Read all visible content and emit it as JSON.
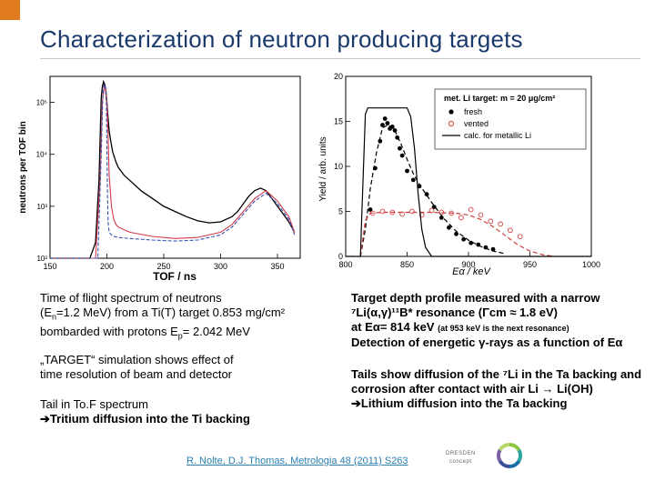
{
  "slide": {
    "title": "Characterization of neutron producing targets",
    "accent_color": "#e07b1f",
    "title_color": "#1b3a6b"
  },
  "left_text": {
    "line1": "Time of flight spectrum of neutrons",
    "line2_pre": "(E",
    "line2_sub": "n",
    "line2_post": "=1.2 MeV) from a Ti(T) target 0.853 mg/cm²",
    "line3_pre": "bombarded with protons E",
    "line3_sub": "p",
    "line3_post": "= 2.042 MeV",
    "sim1": "„TARGET“ simulation shows effect of",
    "sim2": "time resolution of beam and detector",
    "tail1": "Tail in To.F spectrum",
    "tail2": "Tritium diffusion into the Ti backing"
  },
  "right_text": {
    "l1": "Target depth profile measured with a narrow",
    "l2": "⁷Li(α,γ)¹¹B* resonance (Γcm ≈ 1.8 eV)",
    "l3a": "at Eα= 814 keV",
    "l3b": "(at 953 keV is the next resonance)",
    "l4": "Detection of energetic γ-rays as a function of Eα",
    "t1": "Tails show diffusion of the ⁷Li in the Ta backing and",
    "t2": "corrosion after contact with air Li → Li(OH)",
    "t3": "Lithium diffusion into the Ta backing"
  },
  "reference": "R. Nolte, D.J. Thomas, Metrologia 48 (2011) S263",
  "logo": {
    "line1": "DRESDEN",
    "line2": "concept"
  },
  "chart_data": [
    {
      "type": "line",
      "title": "",
      "xlabel": "TOF / ns",
      "ylabel": "neutrons per TOF bin",
      "xlim": [
        150,
        370
      ],
      "ylim_log10": [
        2,
        5.5
      ],
      "xticks": [
        "150",
        "200",
        "250",
        "300",
        "350"
      ],
      "yticks": [
        "10²",
        "10³",
        "10⁴",
        "10⁵"
      ],
      "series": [
        {
          "name": "measured",
          "color": "#000000",
          "x": [
            150,
            185,
            190,
            193,
            195,
            196,
            197,
            198,
            199,
            200,
            201,
            202,
            203,
            205,
            208,
            210,
            215,
            220,
            225,
            230,
            240,
            250,
            260,
            270,
            280,
            290,
            300,
            310,
            315,
            320,
            325,
            330,
            335,
            340,
            345,
            350,
            355,
            360,
            365
          ],
          "y": [
            2.0,
            2.0,
            2.3,
            3.5,
            5.1,
            5.3,
            5.4,
            5.35,
            5.25,
            5.0,
            4.7,
            4.45,
            4.3,
            4.05,
            3.85,
            3.75,
            3.6,
            3.5,
            3.4,
            3.3,
            3.15,
            3.0,
            2.9,
            2.8,
            2.72,
            2.68,
            2.7,
            2.8,
            2.9,
            3.05,
            3.2,
            3.3,
            3.35,
            3.3,
            3.15,
            3.0,
            2.85,
            2.7,
            2.5
          ]
        },
        {
          "name": "simulation (red)",
          "color": "#d03a4a",
          "x": [
            150,
            190,
            194,
            196,
            197,
            198,
            199,
            200,
            201,
            202,
            204,
            206,
            208,
            210,
            215,
            220,
            240,
            260,
            280,
            300,
            310,
            320,
            330,
            340,
            350,
            360,
            365
          ],
          "y": [
            2.0,
            2.0,
            3.5,
            5.0,
            5.2,
            5.3,
            5.25,
            5.0,
            4.4,
            3.6,
            3.0,
            2.75,
            2.65,
            2.6,
            2.55,
            2.5,
            2.42,
            2.38,
            2.4,
            2.5,
            2.65,
            2.9,
            3.15,
            3.3,
            3.1,
            2.8,
            2.5
          ]
        },
        {
          "name": "simulation (blue dashed)",
          "color": "#3a52b0",
          "x": [
            150,
            192,
            195,
            196.5,
            197.5,
            198.5,
            199.5,
            200,
            200.5,
            201,
            202,
            204,
            206,
            210,
            220,
            240,
            260,
            280,
            300,
            310,
            320,
            330,
            340,
            350,
            360,
            365
          ],
          "y": [
            2.0,
            2.0,
            4.0,
            5.2,
            5.35,
            5.3,
            5.0,
            4.2,
            3.3,
            2.7,
            2.5,
            2.45,
            2.42,
            2.4,
            2.38,
            2.35,
            2.33,
            2.35,
            2.45,
            2.6,
            2.85,
            3.1,
            3.25,
            3.05,
            2.75,
            2.45
          ]
        }
      ]
    },
    {
      "type": "line",
      "title": "",
      "xlabel": "Eα / keV",
      "ylabel": "Yield / arb. units",
      "xlim": [
        800,
        1000
      ],
      "ylim": [
        0,
        20
      ],
      "xticks": [
        "800",
        "850",
        "900",
        "950",
        "1000"
      ],
      "yticks": [
        "0",
        "5",
        "10",
        "15",
        "20"
      ],
      "legend": {
        "title": "met. Li target: m = 20 μg/cm²",
        "entries": [
          "fresh",
          "vented",
          "calc. for metallic Li"
        ],
        "placement": "top-right"
      },
      "series": [
        {
          "name": "fresh",
          "style": "filled-dots",
          "color": "#000000",
          "x": [
            820,
            824,
            828,
            830,
            832,
            834,
            836,
            838,
            840,
            842,
            844,
            846,
            850,
            855,
            860,
            866,
            872,
            878,
            884,
            890,
            896,
            902,
            908,
            914,
            920
          ],
          "y": [
            5.2,
            9.8,
            12.8,
            14.6,
            15.3,
            14.8,
            14.2,
            14.4,
            14.0,
            13.2,
            12.0,
            11.2,
            9.5,
            8.5,
            7.8,
            6.9,
            5.5,
            4.3,
            3.2,
            2.5,
            1.9,
            1.5,
            1.3,
            1.0,
            0.8
          ]
        },
        {
          "name": "fresh fit",
          "style": "dashed",
          "color": "#000000",
          "x": [
            812,
            816,
            820,
            825,
            830,
            835,
            840,
            845,
            850,
            855,
            860,
            870,
            880,
            890,
            900,
            910,
            920,
            930
          ],
          "y": [
            0,
            3.0,
            7.5,
            11.5,
            14.3,
            14.6,
            14.0,
            12.5,
            10.8,
            9.2,
            8.0,
            6.0,
            4.2,
            2.8,
            1.8,
            1.1,
            0.6,
            0.3
          ]
        },
        {
          "name": "vented",
          "style": "open-circles",
          "color": "#d04040",
          "x": [
            822,
            830,
            838,
            846,
            854,
            862,
            870,
            878,
            886,
            894,
            902,
            910,
            918,
            926,
            934,
            942
          ],
          "y": [
            4.8,
            5.0,
            4.9,
            4.7,
            5.0,
            4.6,
            5.1,
            4.9,
            4.8,
            4.3,
            5.2,
            4.6,
            3.9,
            3.6,
            2.9,
            2.2
          ]
        },
        {
          "name": "vented fit",
          "style": "dashed",
          "color": "#d04040",
          "x": [
            812,
            816,
            820,
            830,
            850,
            870,
            890,
            900,
            910,
            920,
            930,
            940,
            950,
            960,
            970
          ],
          "y": [
            0,
            4.0,
            4.8,
            4.9,
            4.9,
            4.9,
            4.8,
            4.6,
            4.1,
            3.3,
            2.3,
            1.3,
            0.6,
            0.2,
            0
          ]
        },
        {
          "name": "calc. for metallic Li",
          "style": "solid",
          "color": "#000000",
          "x": [
            800,
            812,
            813,
            815,
            816,
            818,
            820,
            850,
            853,
            856,
            859,
            862,
            865,
            870,
            1000
          ],
          "y": [
            0,
            0,
            4,
            12,
            15.8,
            16.5,
            16.5,
            16.5,
            15.5,
            12,
            7,
            3,
            1,
            0,
            0
          ]
        }
      ]
    }
  ]
}
